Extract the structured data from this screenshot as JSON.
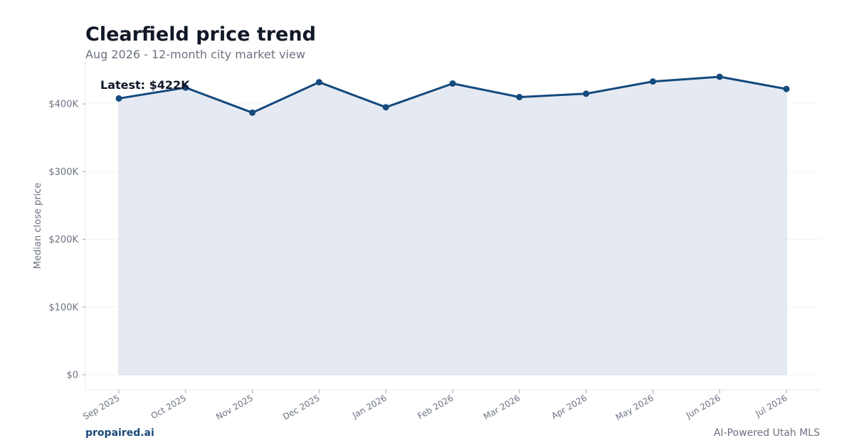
{
  "header": {
    "title": "Clearfield price trend",
    "subtitle": "Aug 2026 - 12-month city market view"
  },
  "footer": {
    "brand": "propaired.ai",
    "tagline": "AI-Powered Utah MLS"
  },
  "colors": {
    "line": "#154a7e",
    "fill": "#e5eaf2",
    "axis_text": "#6b7280",
    "grid": "#f2f3f5",
    "title": "#111827"
  },
  "chart_data": {
    "type": "area",
    "categories": [
      "Sep 2025",
      "Oct 2025",
      "Nov 2025",
      "Dec 2025",
      "Jan 2026",
      "Feb 2026",
      "Mar 2026",
      "Apr 2026",
      "May 2026",
      "Jun 2026",
      "Jul 2026"
    ],
    "values": [
      408000,
      424000,
      387000,
      432000,
      395000,
      430000,
      410000,
      415000,
      433000,
      440000,
      422000
    ],
    "ylabel": "Median close price",
    "xlabel": "",
    "ylim": [
      -22000,
      462000
    ],
    "yticks": [
      0,
      100000,
      200000,
      300000,
      400000
    ],
    "ytick_labels": [
      "$0",
      "$100K",
      "$200K",
      "$300K",
      "$400K"
    ],
    "annotation": "Latest: $422K",
    "grid": true,
    "legend": false
  }
}
